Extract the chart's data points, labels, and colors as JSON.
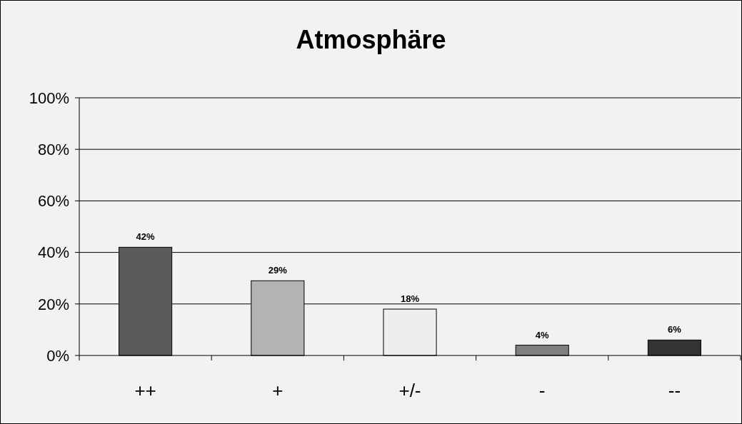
{
  "chart_data": {
    "type": "bar",
    "title": "Atmosphäre",
    "categories": [
      "++",
      "+",
      "+/-",
      "-",
      "--"
    ],
    "values": [
      42,
      29,
      18,
      4,
      6
    ],
    "colors": [
      "#5a5a5a",
      "#b4b4b4",
      "#eeeeee",
      "#808080",
      "#333333"
    ],
    "value_labels": [
      "42%",
      "29%",
      "18%",
      "4%",
      "6%"
    ],
    "ylim": [
      0,
      100
    ],
    "yticks": [
      {
        "value": 0,
        "label": "0%"
      },
      {
        "value": 20,
        "label": "20%"
      },
      {
        "value": 40,
        "label": "40%"
      },
      {
        "value": 60,
        "label": "60%"
      },
      {
        "value": 80,
        "label": "80%"
      },
      {
        "value": 100,
        "label": "100%"
      }
    ],
    "grid": "y"
  }
}
